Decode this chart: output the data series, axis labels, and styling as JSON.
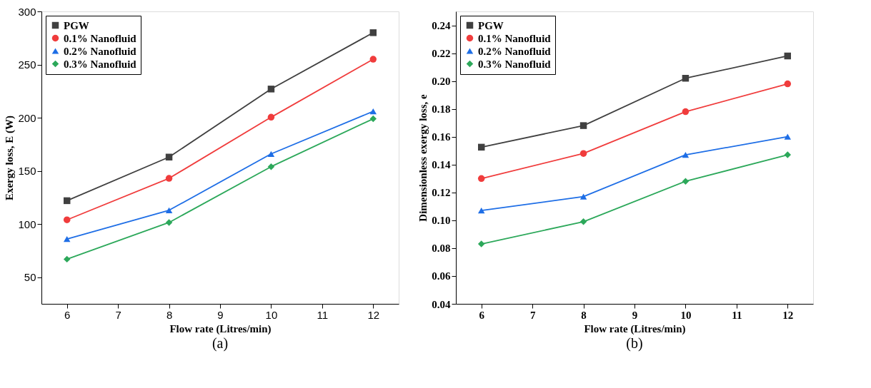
{
  "chart_data": [
    {
      "type": "line",
      "xlabel": "Flow rate (Litres/min)",
      "ylabel": "Exergy loss, E (W)",
      "annotations": [
        "(a)"
      ],
      "x": [
        6,
        8,
        10,
        12
      ],
      "xlim": [
        5.5,
        12.5
      ],
      "xticks": [
        6,
        7,
        8,
        9,
        10,
        11,
        12
      ],
      "ylim": [
        25,
        300
      ],
      "yticks": [
        50,
        100,
        150,
        200,
        250,
        300
      ],
      "grid": false,
      "legend": "top left",
      "series": [
        {
          "name": "PGW",
          "color": "#404040",
          "marker": "square",
          "values": [
            122,
            163,
            227,
            280
          ]
        },
        {
          "name": "0.1% Nanofluid",
          "color": "#f03c3c",
          "marker": "circle",
          "values": [
            104,
            143,
            200.5,
            255
          ]
        },
        {
          "name": "0.2% Nanofluid",
          "color": "#1e6ee6",
          "marker": "triangle",
          "values": [
            86,
            113,
            166,
            206
          ]
        },
        {
          "name": "0.3% Nanofluid",
          "color": "#2ca85a",
          "marker": "diamond",
          "values": [
            67,
            101.5,
            154,
            199
          ]
        }
      ]
    },
    {
      "type": "line",
      "xlabel": "Flow rate (Litres/min)",
      "ylabel": "Dimensionless exergy loss, e",
      "annotations": [
        "(b)"
      ],
      "x": [
        6,
        8,
        10,
        12
      ],
      "xlim": [
        5.5,
        12.5
      ],
      "xticks": [
        6,
        7,
        8,
        9,
        10,
        11,
        12
      ],
      "ylim": [
        0.04,
        0.25
      ],
      "yticks": [
        0.04,
        0.06,
        0.08,
        {
          "value": 0.1,
          "label": "0.10"
        },
        0.12,
        0.14,
        0.16,
        0.18,
        {
          "value": 0.2,
          "label": "0.20"
        },
        0.22,
        0.24
      ],
      "grid": false,
      "legend": "top left",
      "series": [
        {
          "name": "PGW",
          "color": "#404040",
          "marker": "square",
          "values": [
            0.1525,
            0.168,
            0.202,
            0.218
          ]
        },
        {
          "name": "0.1% Nanofluid",
          "color": "#f03c3c",
          "marker": "circle",
          "values": [
            0.13,
            0.148,
            0.178,
            0.198
          ]
        },
        {
          "name": "0.2% Nanofluid",
          "color": "#1e6ee6",
          "marker": "triangle",
          "values": [
            0.107,
            0.117,
            0.147,
            0.16
          ]
        },
        {
          "name": "0.3% Nanofluid",
          "color": "#2ca85a",
          "marker": "diamond",
          "values": [
            0.083,
            0.099,
            0.128,
            0.147
          ]
        }
      ]
    }
  ]
}
